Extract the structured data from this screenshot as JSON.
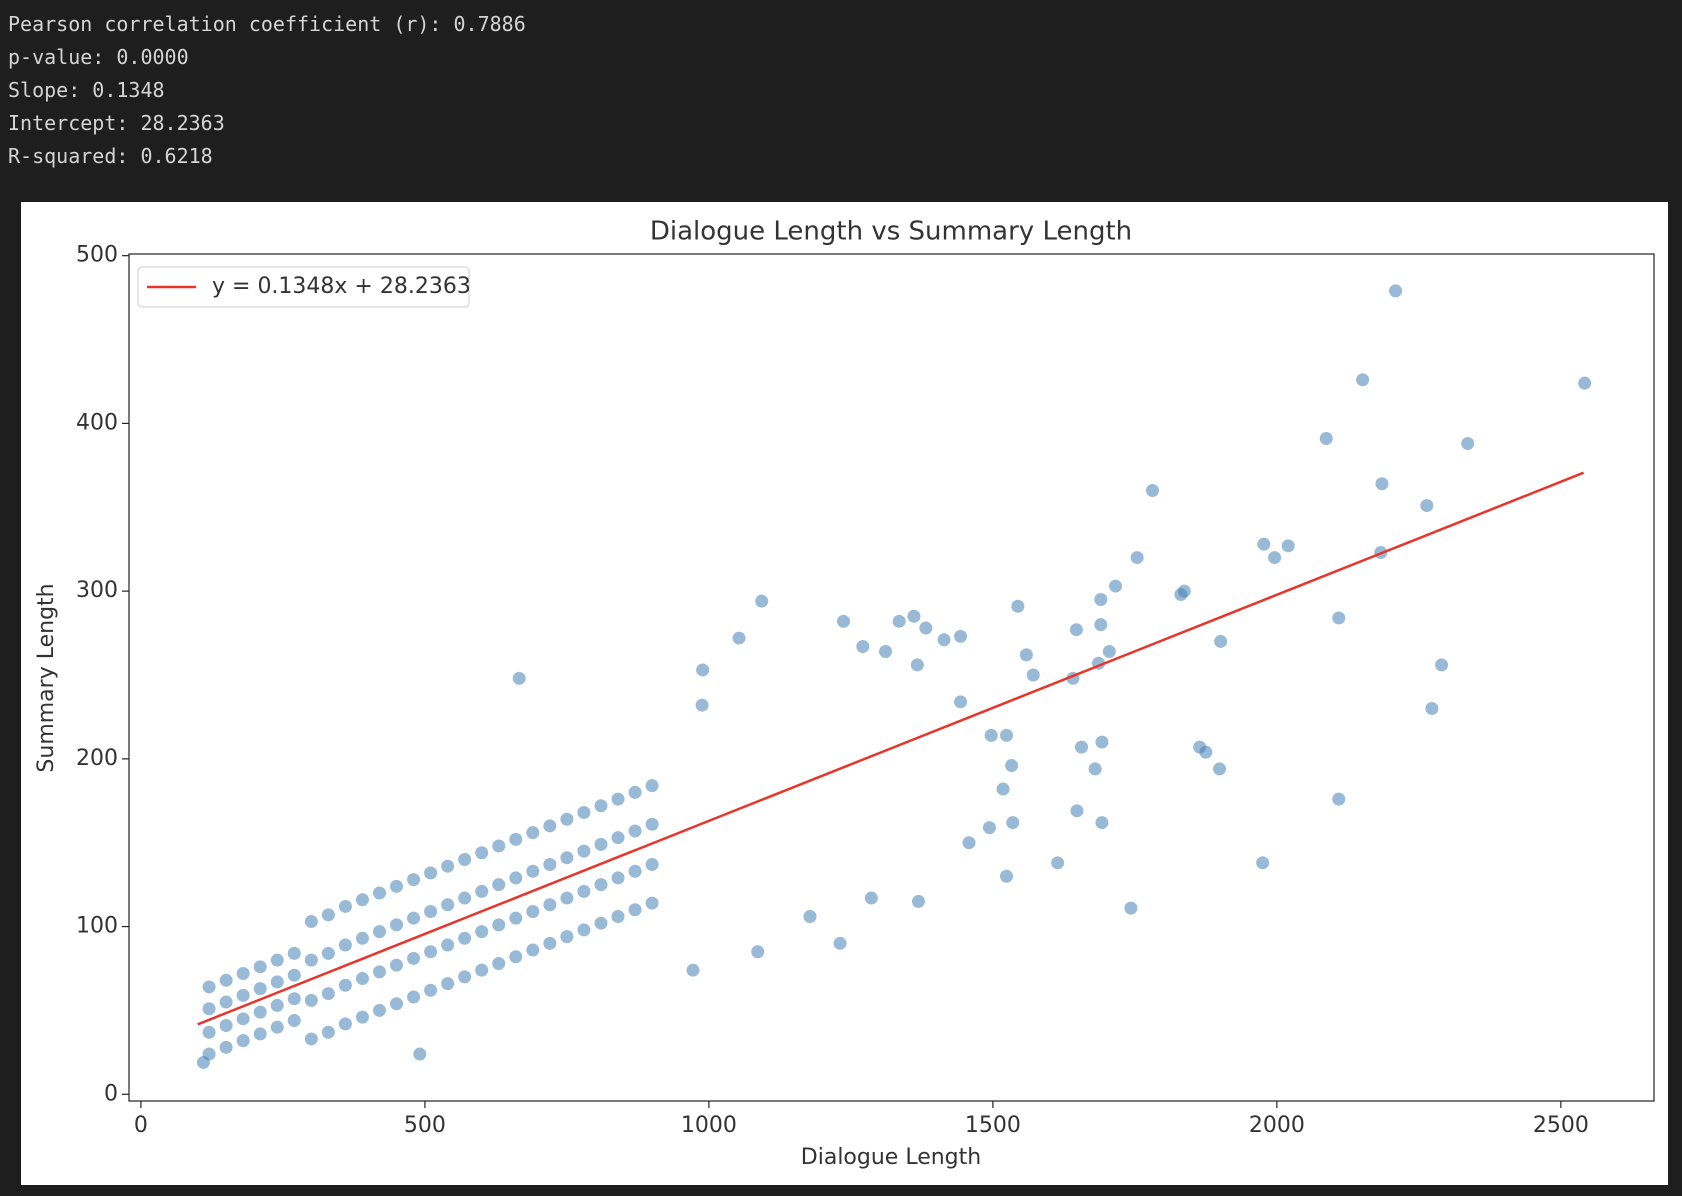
{
  "output_lines": [
    "Pearson correlation coefficient (r): 0.7886",
    "p-value: 0.0000",
    "Slope: 0.1348",
    "Intercept: 28.2363",
    "R-squared: 0.6218"
  ],
  "chart_data": {
    "type": "scatter",
    "title": "Dialogue Length vs Summary Length",
    "x_label": "Dialogue Length",
    "y_label": "Summary Length",
    "xlim": [
      -21,
      2664
    ],
    "ylim": [
      -4,
      501
    ],
    "xticks": [
      0,
      500,
      1000,
      1500,
      2000,
      2500
    ],
    "yticks": [
      0,
      100,
      200,
      300,
      400,
      500
    ],
    "grid": false,
    "legend": "upper left",
    "series": [
      {
        "type": "scatter",
        "color": "#4682b4",
        "x": [
          2209,
          2151,
          2542,
          2087,
          2336,
          2185,
          2264,
          1781,
          1977,
          1996,
          2020,
          2183,
          1754,
          1716,
          1690,
          1690,
          1705,
          1686,
          1837,
          1831,
          2109,
          1901,
          2290,
          2273,
          2109,
          1975,
          1743,
          1864,
          1875,
          1899,
          1647,
          1641,
          1656,
          1692,
          1680,
          1648,
          1692,
          1614,
          1544,
          1559,
          1571,
          1524,
          1497,
          1533,
          1518,
          1535,
          1494,
          1524,
          1458,
          1443,
          1414,
          1443,
          1093,
          1361,
          1335,
          1382,
          1237,
          1271,
          1311,
          1367,
          666,
          1053,
          989,
          988,
          1369,
          1231,
          1286,
          1178,
          972,
          1086,
          491,
          110,
          120,
          120,
          120,
          120,
          150,
          150,
          150,
          150,
          180,
          180,
          180,
          180,
          210,
          210,
          210,
          210,
          240,
          240,
          240,
          240,
          270,
          270,
          270,
          270,
          300,
          300,
          300,
          300,
          330,
          330,
          330,
          330,
          360,
          360,
          360,
          360,
          390,
          390,
          390,
          390,
          420,
          420,
          420,
          420,
          450,
          450,
          450,
          450,
          480,
          480,
          480,
          480,
          510,
          510,
          510,
          510,
          540,
          540,
          540,
          540,
          570,
          570,
          570,
          570,
          600,
          600,
          600,
          600,
          630,
          630,
          630,
          630,
          660,
          660,
          660,
          660,
          690,
          690,
          690,
          690,
          720,
          720,
          720,
          720,
          750,
          750,
          750,
          750,
          780,
          780,
          780,
          780,
          810,
          810,
          810,
          810,
          840,
          840,
          840,
          840,
          870,
          870,
          870,
          870,
          900,
          900,
          900,
          900
        ],
        "values": [
          479,
          426,
          424,
          391,
          388,
          364,
          351,
          360,
          328,
          320,
          327,
          323,
          320,
          303,
          295,
          280,
          264,
          257,
          300,
          298,
          284,
          270,
          256,
          230,
          176,
          138,
          111,
          207,
          204,
          194,
          277,
          248,
          207,
          210,
          194,
          169,
          162,
          138,
          291,
          262,
          250,
          214,
          214,
          196,
          182,
          162,
          159,
          130,
          150,
          234,
          271,
          273,
          294,
          285,
          282,
          278,
          282,
          267,
          264,
          256,
          248,
          272,
          253,
          232,
          115,
          90,
          117,
          106,
          74,
          85,
          24,
          19,
          24,
          37,
          51,
          64,
          28,
          41,
          55,
          68,
          32,
          45,
          59,
          72,
          36,
          49,
          63,
          76,
          40,
          53,
          67,
          80,
          44,
          57,
          71,
          84,
          33,
          56,
          80,
          103,
          37,
          60,
          84,
          107,
          42,
          65,
          89,
          112,
          46,
          69,
          93,
          116,
          50,
          73,
          97,
          120,
          54,
          77,
          101,
          124,
          58,
          81,
          105,
          128,
          62,
          85,
          109,
          132,
          66,
          89,
          113,
          136,
          70,
          93,
          117,
          140,
          74,
          97,
          121,
          144,
          78,
          101,
          125,
          148,
          82,
          105,
          129,
          152,
          86,
          109,
          133,
          156,
          90,
          113,
          137,
          160,
          94,
          117,
          141,
          164,
          98,
          121,
          145,
          168,
          102,
          125,
          149,
          172,
          106,
          129,
          153,
          176,
          110,
          133,
          157,
          180,
          114,
          137,
          161,
          184
        ]
      },
      {
        "type": "line",
        "name": "y = 0.1348x + 28.2363",
        "color": "#e8342a",
        "x": [
          100,
          2540
        ],
        "values": [
          41.7,
          370.6
        ]
      }
    ]
  }
}
